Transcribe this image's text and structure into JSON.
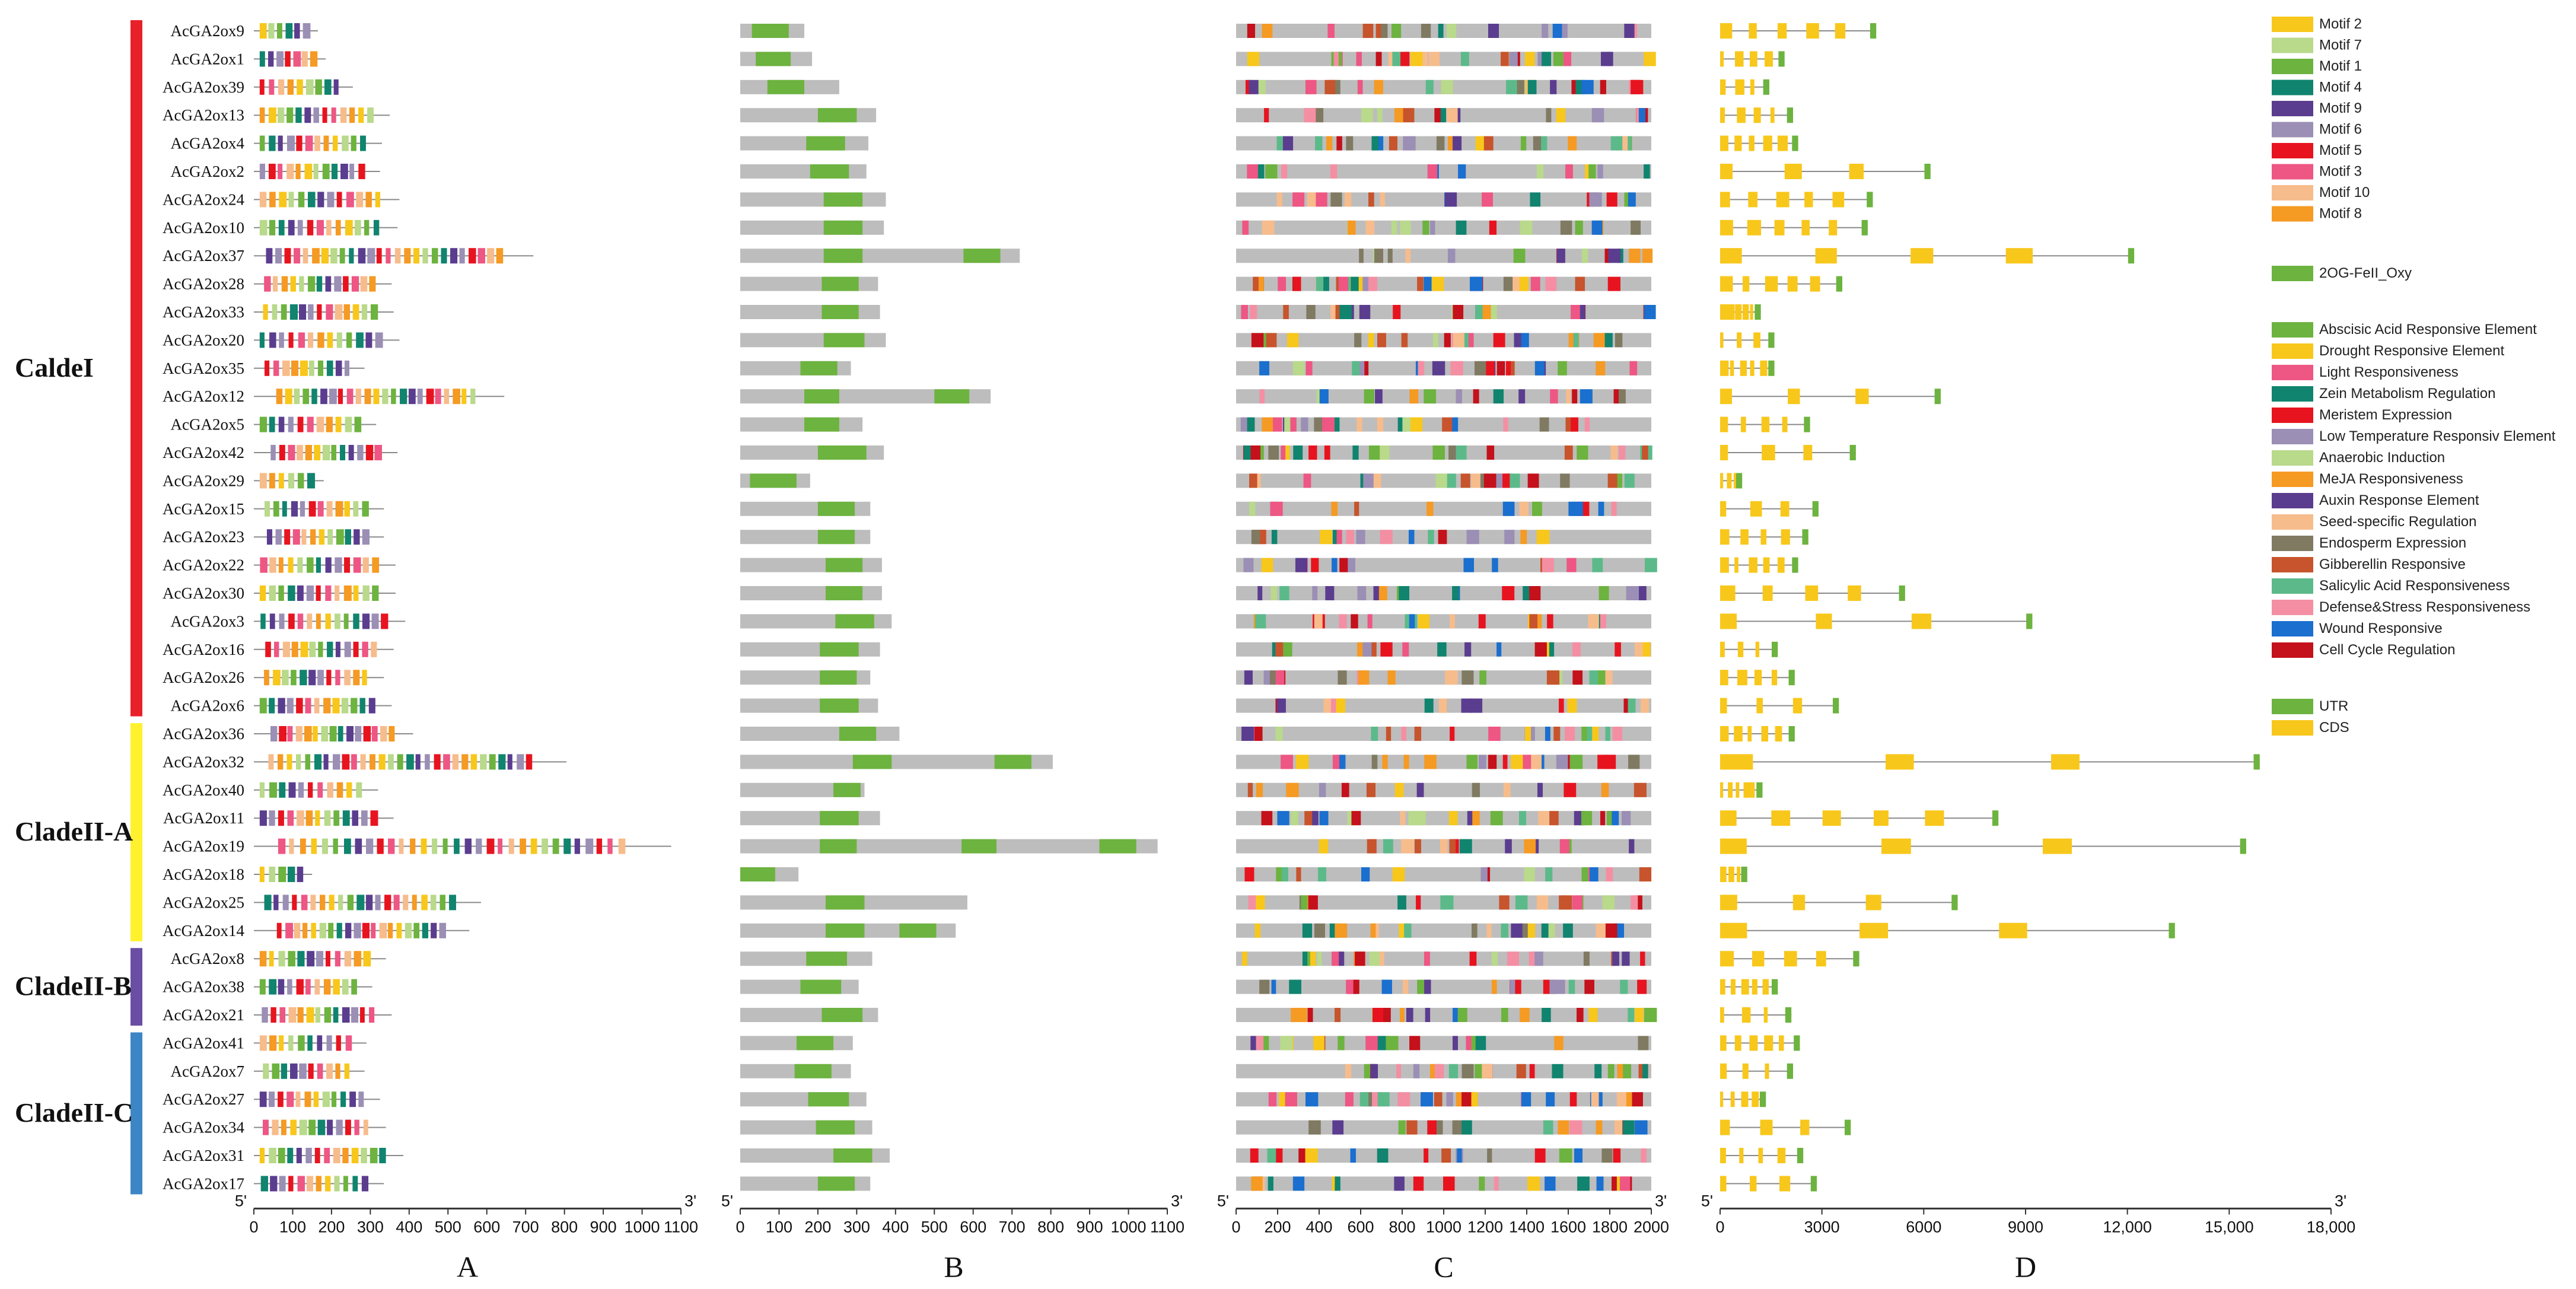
{
  "chart_data": {
    "type": "gene-structure-figure",
    "genes": [
      "AcGA2ox9",
      "AcGA2ox1",
      "AcGA2ox39",
      "AcGA2ox13",
      "AcGA2ox4",
      "AcGA2ox2",
      "AcGA2ox24",
      "AcGA2ox10",
      "AcGA2ox37",
      "AcGA2ox28",
      "AcGA2ox33",
      "AcGA2ox20",
      "AcGA2ox35",
      "AcGA2ox12",
      "AcGA2ox5",
      "AcGA2ox42",
      "AcGA2ox29",
      "AcGA2ox15",
      "AcGA2ox23",
      "AcGA2ox22",
      "AcGA2ox30",
      "AcGA2ox3",
      "AcGA2ox16",
      "AcGA2ox26",
      "AcGA2ox6",
      "AcGA2ox36",
      "AcGA2ox32",
      "AcGA2ox40",
      "AcGA2ox11",
      "AcGA2ox19",
      "AcGA2ox18",
      "AcGA2ox25",
      "AcGA2ox14",
      "AcGA2ox8",
      "AcGA2ox38",
      "AcGA2ox21",
      "AcGA2ox41",
      "AcGA2ox7",
      "AcGA2ox27",
      "AcGA2ox34",
      "AcGA2ox31",
      "AcGA2ox17"
    ],
    "clades": [
      {
        "name": "CaldeI",
        "from": 0,
        "to": 24,
        "color": "#e8202a"
      },
      {
        "name": "CladeII-A",
        "from": 25,
        "to": 32,
        "color": "#fff12e"
      },
      {
        "name": "CladeII-B",
        "from": 33,
        "to": 35,
        "color": "#6a4ea3"
      },
      {
        "name": "CladeII-C",
        "from": 36,
        "to": 41,
        "color": "#3d86c6"
      }
    ],
    "panels": [
      {
        "label": "A",
        "end5": "5'",
        "end3": "3'",
        "xmax": 1100,
        "ticks": [
          "0",
          "100",
          "200",
          "300",
          "400",
          "500",
          "600",
          "700",
          "800",
          "900",
          "1000",
          "1100"
        ],
        "description": "conserved motifs"
      },
      {
        "label": "B",
        "end5": "5'",
        "end3": "3'",
        "xmax": 1100,
        "ticks": [
          "0",
          "100",
          "200",
          "300",
          "400",
          "500",
          "600",
          "700",
          "800",
          "900",
          "1000",
          "1100"
        ],
        "description": "conserved domain"
      },
      {
        "label": "C",
        "end5": "5'",
        "end3": "3'",
        "xmax": 2000,
        "ticks": [
          "0",
          "200",
          "400",
          "600",
          "800",
          "1000",
          "1200",
          "1400",
          "1600",
          "1800",
          "2000"
        ],
        "description": "promoter cis-elements"
      },
      {
        "label": "D",
        "end5": "5'",
        "end3": "3'",
        "xmax": 18000,
        "ticks": [
          "0",
          "3000",
          "6000",
          "9000",
          "12,000",
          "15,000",
          "18,000"
        ],
        "description": "exon-intron structure"
      }
    ],
    "protein_lengths": [
      165,
      185,
      255,
      350,
      330,
      325,
      375,
      370,
      720,
      355,
      360,
      375,
      285,
      645,
      315,
      370,
      180,
      335,
      335,
      365,
      365,
      390,
      360,
      335,
      355,
      410,
      805,
      320,
      360,
      1075,
      150,
      585,
      555,
      340,
      305,
      355,
      290,
      285,
      325,
      340,
      385,
      335
    ],
    "domain_spans": [
      [
        30,
        125
      ],
      [
        40,
        130
      ],
      [
        70,
        165
      ],
      [
        200,
        300
      ],
      [
        170,
        270
      ],
      [
        180,
        280
      ],
      [
        215,
        315
      ],
      [
        215,
        315
      ],
      [
        215,
        315
      ],
      [
        210,
        305
      ],
      [
        210,
        305
      ],
      [
        215,
        320
      ],
      [
        155,
        250
      ],
      [
        165,
        255
      ],
      [
        165,
        255
      ],
      [
        200,
        325
      ],
      [
        25,
        145
      ],
      [
        200,
        295
      ],
      [
        200,
        295
      ],
      [
        220,
        315
      ],
      [
        220,
        315
      ],
      [
        245,
        345
      ],
      [
        205,
        305
      ],
      [
        205,
        300
      ],
      [
        205,
        305
      ],
      [
        255,
        350
      ],
      [
        290,
        390
      ],
      [
        240,
        310
      ],
      [
        205,
        305
      ],
      [
        205,
        300
      ],
      [
        0,
        90
      ],
      [
        220,
        320
      ],
      [
        220,
        320
      ],
      [
        170,
        275
      ],
      [
        155,
        260
      ],
      [
        210,
        315
      ],
      [
        145,
        240
      ],
      [
        140,
        235
      ],
      [
        175,
        280
      ],
      [
        195,
        295
      ],
      [
        240,
        340
      ],
      [
        200,
        295
      ]
    ],
    "extra_domains": [
      {
        "gene": "AcGA2ox37",
        "span": [
          575,
          670
        ]
      },
      {
        "gene": "AcGA2ox12",
        "span": [
          500,
          590
        ]
      },
      {
        "gene": "AcGA2ox32",
        "span": [
          655,
          750
        ]
      },
      {
        "gene": "AcGA2ox19",
        "span": [
          570,
          660
        ]
      },
      {
        "gene": "AcGA2ox19",
        "span": [
          925,
          1020
        ]
      },
      {
        "gene": "AcGA2ox14",
        "span": [
          410,
          505
        ]
      }
    ],
    "gene_lengths": [
      4600,
      1900,
      1450,
      2150,
      2300,
      6200,
      4500,
      4350,
      12200,
      3600,
      1200,
      1600,
      1600,
      6500,
      2650,
      4000,
      650,
      2900,
      2600,
      2300,
      5450,
      9200,
      1700,
      2200,
      3500,
      2200,
      15900,
      1250,
      8200,
      15500,
      800,
      7000,
      13400,
      4100,
      1700,
      2100,
      2350,
      2150,
      1350,
      3850,
      2450,
      2850
    ],
    "motif_legend": [
      {
        "name": "Motif 2",
        "color": "#f8c71b"
      },
      {
        "name": "Motif 7",
        "color": "#b9d98b"
      },
      {
        "name": "Motif 1",
        "color": "#6db33f"
      },
      {
        "name": "Motif 4",
        "color": "#10846e"
      },
      {
        "name": "Motif 9",
        "color": "#5b3d8f"
      },
      {
        "name": "Motif 6",
        "color": "#9b8fb5"
      },
      {
        "name": "Motif 5",
        "color": "#e7141f"
      },
      {
        "name": "Motif 3",
        "color": "#ee5684"
      },
      {
        "name": "Motif 10",
        "color": "#f7bc8c"
      },
      {
        "name": "Motif 8",
        "color": "#f59a23"
      }
    ],
    "domain_legend": [
      {
        "name": "2OG-FeII_Oxy",
        "color": "#6db33f"
      }
    ],
    "element_legend": [
      {
        "name": "Abscisic Acid Responsive Element",
        "color": "#6db33f"
      },
      {
        "name": "Drought Responsive Element",
        "color": "#f8c71b"
      },
      {
        "name": "Light Responsiveness",
        "color": "#ee5684"
      },
      {
        "name": "Zein Metabolism Regulation",
        "color": "#10846e"
      },
      {
        "name": "Meristem Expression",
        "color": "#e7141f"
      },
      {
        "name": "Low Temperature Responsiv Element",
        "color": "#9b8fb5"
      },
      {
        "name": "Anaerobic Induction",
        "color": "#b9d98b"
      },
      {
        "name": "MeJA Responsiveness",
        "color": "#f59a23"
      },
      {
        "name": "Auxin Response Element",
        "color": "#5b3d8f"
      },
      {
        "name": "Seed-specific Regulation",
        "color": "#f7bc8c"
      },
      {
        "name": "Endosperm Expression",
        "color": "#807a62"
      },
      {
        "name": "Gibberellin Responsive",
        "color": "#c7542c"
      },
      {
        "name": "Salicylic Acid Responsiveness",
        "color": "#5cba8a"
      },
      {
        "name": "Defense&Stress Responsiveness",
        "color": "#f48fa3"
      },
      {
        "name": "Wound Responsive",
        "color": "#1a6fcf"
      },
      {
        "name": "Cell Cycle Regulation",
        "color": "#c4111b"
      }
    ],
    "structure_legend": [
      {
        "name": "UTR",
        "color": "#6db33f"
      },
      {
        "name": "CDS",
        "color": "#f8c71b"
      }
    ],
    "colors": {
      "backbone_protein": "#bdbdbd",
      "backbone_line": "#8a8a8a",
      "axis": "#333333"
    }
  }
}
